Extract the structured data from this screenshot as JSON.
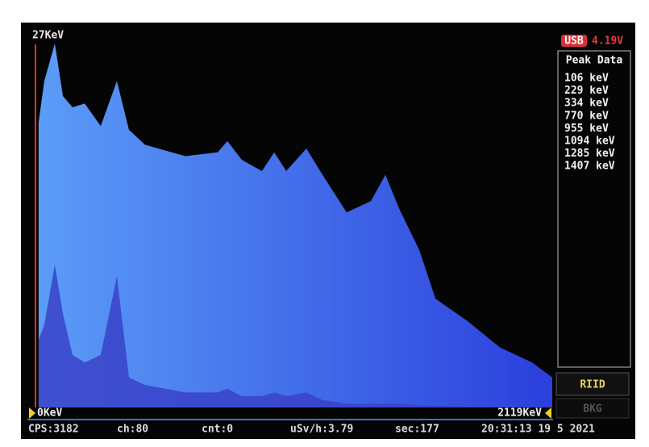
{
  "screen": {
    "usb_badge": "USB",
    "battery": "4.19V",
    "peak_panel": {
      "title": "Peak Data",
      "peaks": [
        "106 keV",
        "229 keV",
        "334 keV",
        "770 keV",
        "955 keV",
        "1094 keV",
        "1285 keV",
        "1407 keV"
      ]
    },
    "buttons": [
      "RIID",
      "BKG"
    ],
    "status": [
      "CPS:3182",
      "ch:80",
      "cnt:0",
      "uSv/h:3.79",
      "sec:177",
      "20:31:13 19 5 2021"
    ]
  },
  "chart_data": {
    "type": "area",
    "y_top_label": "27KeV",
    "x_start_label": "0KeV",
    "x_end_label": "2119KeV",
    "x": [
      26,
      49,
      92,
      125,
      164,
      214,
      279,
      345,
      394,
      460,
      624,
      756,
      795,
      854,
      936,
      986,
      1035,
      1117,
      1183,
      1281,
      1380,
      1439,
      1495,
      1577,
      1643,
      1774,
      1906,
      2037,
      2119
    ],
    "xlim": [
      0,
      2119
    ],
    "ylim": [
      0,
      100
    ],
    "series": [
      {
        "color": "#4f8ff7",
        "values": [
          76,
          87,
          97,
          83,
          80,
          81,
          75,
          87,
          74,
          70,
          67,
          68,
          71,
          66,
          63,
          68,
          63,
          69,
          62,
          52,
          55,
          62,
          53,
          42,
          29,
          23,
          16,
          12,
          8
        ]
      },
      {
        "color": "#3a42c8",
        "values": [
          18,
          22,
          38,
          25,
          14,
          12,
          14,
          35,
          8,
          6,
          4,
          4,
          5,
          3,
          3,
          4,
          3,
          4,
          2,
          1,
          1,
          1,
          1,
          0.5,
          0.5,
          0.3,
          0.2,
          0.1,
          0
        ]
      }
    ]
  }
}
